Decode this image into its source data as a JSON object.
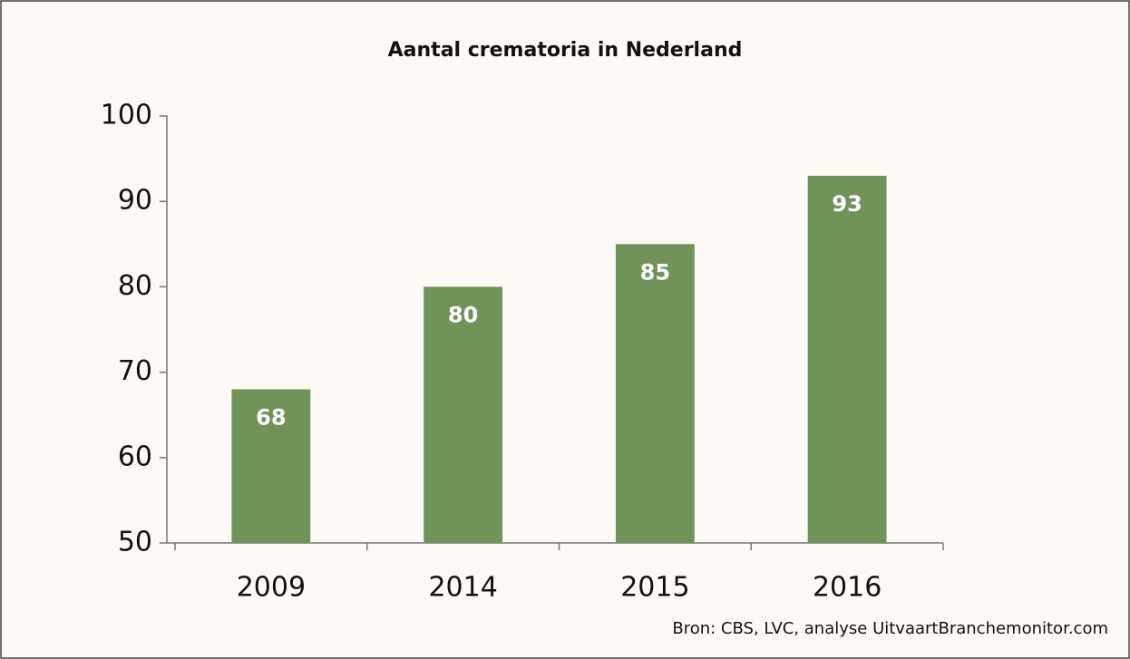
{
  "chart_data": {
    "type": "bar",
    "title": "Aantal crematoria in Nederland",
    "categories": [
      "2009",
      "2014",
      "2015",
      "2016"
    ],
    "values": [
      68,
      80,
      85,
      93
    ],
    "color": "#70935a",
    "ylim": [
      50,
      100
    ],
    "yticks": [
      50,
      60,
      70,
      80,
      90,
      100
    ],
    "grid": false,
    "source": "Bron: CBS, LVC, analyse UitvaartBranchemonitor.com"
  }
}
